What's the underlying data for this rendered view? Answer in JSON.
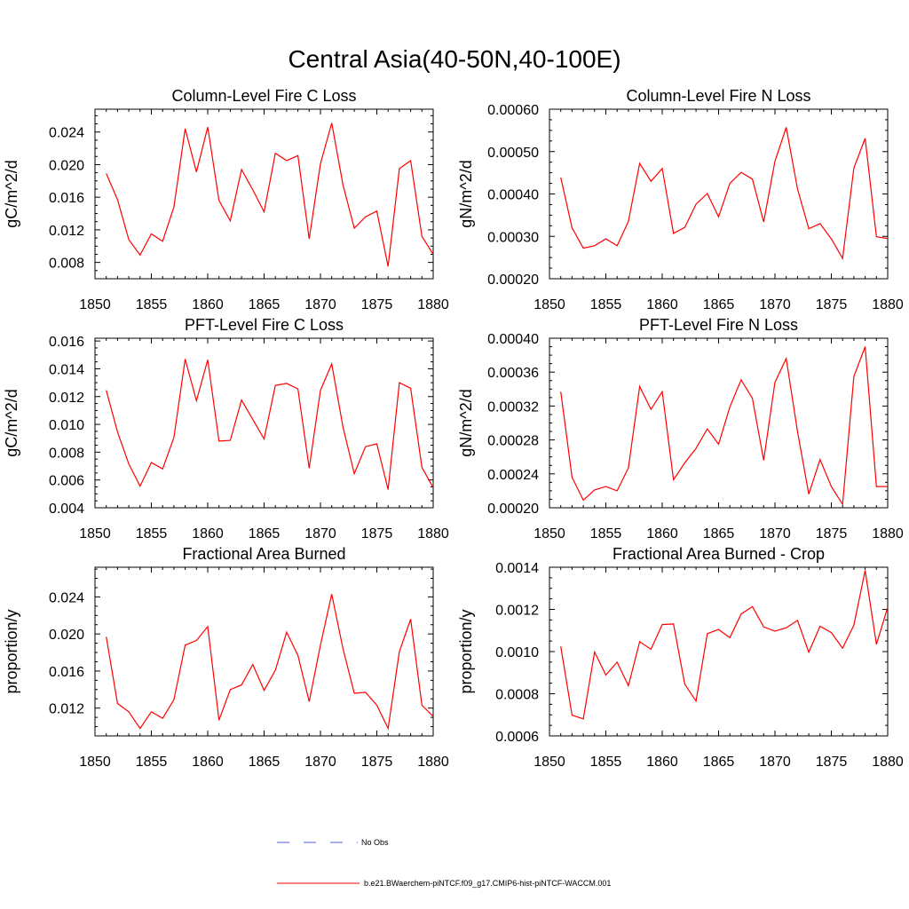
{
  "title": "Central Asia(40-50N,40-100E)",
  "colors": {
    "model_line": "#ff0000",
    "obs_line": "#4a5fd8",
    "axis": "#000000"
  },
  "legend": {
    "obs_label": "No Obs",
    "model_label": "b.e21.BWaerchem-piNTCF.f09_g17.CMIP6-hist-piNTCF-WACCM.001",
    "placement": "bottom-center"
  },
  "chart_data": [
    {
      "type": "line",
      "title": "Column-Level Fire C Loss",
      "ylabel": "gC/m^2/d",
      "xlim": [
        1850,
        1880
      ],
      "ylim": [
        0.006,
        0.0268
      ],
      "xticks": [
        "1850",
        "1855",
        "1860",
        "1865",
        "1870",
        "1875",
        "1880"
      ],
      "yticks": [
        "0.008",
        "0.012",
        "0.016",
        "0.020",
        "0.024"
      ],
      "x": [
        1851,
        1852,
        1853,
        1854,
        1855,
        1856,
        1857,
        1858,
        1859,
        1860,
        1861,
        1862,
        1863,
        1864,
        1865,
        1866,
        1867,
        1868,
        1869,
        1870,
        1871,
        1872,
        1873,
        1874,
        1875,
        1876,
        1877,
        1878,
        1879,
        1880
      ],
      "series": [
        {
          "values": [
            0.0189,
            0.0157,
            0.0108,
            0.0089,
            0.0115,
            0.0106,
            0.0148,
            0.0244,
            0.0191,
            0.0246,
            0.0156,
            0.0131,
            0.0194,
            0.0169,
            0.0142,
            0.0214,
            0.0205,
            0.0211,
            0.0109,
            0.0201,
            0.0251,
            0.0175,
            0.0122,
            0.0136,
            0.0143,
            0.0075,
            0.0195,
            0.0205,
            0.0112,
            0.009
          ]
        }
      ]
    },
    {
      "type": "line",
      "title": "Column-Level Fire N Loss",
      "ylabel": "gN/m^2/d",
      "xlim": [
        1850,
        1880
      ],
      "ylim": [
        0.0002,
        0.0006
      ],
      "xticks": [
        "1850",
        "1855",
        "1860",
        "1865",
        "1870",
        "1875",
        "1880"
      ],
      "yticks": [
        "0.00020",
        "0.00030",
        "0.00040",
        "0.00050",
        "0.00060"
      ],
      "x": [
        1851,
        1852,
        1853,
        1854,
        1855,
        1856,
        1857,
        1858,
        1859,
        1860,
        1861,
        1862,
        1863,
        1864,
        1865,
        1866,
        1867,
        1868,
        1869,
        1870,
        1871,
        1872,
        1873,
        1874,
        1875,
        1876,
        1877,
        1878,
        1879,
        1880
      ],
      "series": [
        {
          "values": [
            0.000439,
            0.00032,
            0.000272,
            0.000278,
            0.000294,
            0.000278,
            0.000335,
            0.000472,
            0.00043,
            0.00046,
            0.000307,
            0.000321,
            0.000376,
            0.000401,
            0.000346,
            0.000425,
            0.000451,
            0.000435,
            0.000334,
            0.000477,
            0.000557,
            0.000412,
            0.000318,
            0.00033,
            0.000294,
            0.000248,
            0.000461,
            0.000531,
            0.000299,
            0.000295
          ]
        }
      ]
    },
    {
      "type": "line",
      "title": "PFT-Level Fire C Loss",
      "ylabel": "gC/m^2/d",
      "xlim": [
        1850,
        1880
      ],
      "ylim": [
        0.004,
        0.0162
      ],
      "xticks": [
        "1850",
        "1855",
        "1860",
        "1865",
        "1870",
        "1875",
        "1880"
      ],
      "yticks": [
        "0.004",
        "0.006",
        "0.008",
        "0.010",
        "0.012",
        "0.014",
        "0.016"
      ],
      "x": [
        1851,
        1852,
        1853,
        1854,
        1855,
        1856,
        1857,
        1858,
        1859,
        1860,
        1861,
        1862,
        1863,
        1864,
        1865,
        1866,
        1867,
        1868,
        1869,
        1870,
        1871,
        1872,
        1873,
        1874,
        1875,
        1876,
        1877,
        1878,
        1879,
        1880
      ],
      "series": [
        {
          "values": [
            0.01245,
            0.00945,
            0.00715,
            0.00555,
            0.00725,
            0.0068,
            0.00905,
            0.0147,
            0.0117,
            0.01465,
            0.0088,
            0.00885,
            0.01175,
            0.01035,
            0.00895,
            0.0128,
            0.01295,
            0.01255,
            0.00685,
            0.01245,
            0.01435,
            0.0098,
            0.00645,
            0.0084,
            0.0086,
            0.0053,
            0.013,
            0.0126,
            0.0069,
            0.00545
          ]
        }
      ]
    },
    {
      "type": "line",
      "title": "PFT-Level Fire N Loss",
      "ylabel": "gN/m^2/d",
      "xlim": [
        1850,
        1880
      ],
      "ylim": [
        0.0002,
        0.0004
      ],
      "xticks": [
        "1850",
        "1855",
        "1860",
        "1865",
        "1870",
        "1875",
        "1880"
      ],
      "yticks": [
        "0.00020",
        "0.00024",
        "0.00028",
        "0.00032",
        "0.00036",
        "0.00040"
      ],
      "x": [
        1851,
        1852,
        1853,
        1854,
        1855,
        1856,
        1857,
        1858,
        1859,
        1860,
        1861,
        1862,
        1863,
        1864,
        1865,
        1866,
        1867,
        1868,
        1869,
        1870,
        1871,
        1872,
        1873,
        1874,
        1875,
        1876,
        1877,
        1878,
        1879,
        1880
      ],
      "series": [
        {
          "values": [
            0.000337,
            0.000236,
            0.000209,
            0.000221,
            0.000225,
            0.00022,
            0.000247,
            0.000343,
            0.000316,
            0.000337,
            0.000233,
            0.000253,
            0.00027,
            0.000293,
            0.000275,
            0.000319,
            0.000351,
            0.000329,
            0.000256,
            0.000348,
            0.000376,
            0.00029,
            0.000216,
            0.000257,
            0.000225,
            0.000204,
            0.000355,
            0.00039,
            0.000225,
            0.000225
          ]
        }
      ]
    },
    {
      "type": "line",
      "title": "Fractional Area Burned",
      "ylabel": "proportion/y",
      "xlim": [
        1850,
        1880
      ],
      "ylim": [
        0.009,
        0.0272
      ],
      "xticks": [
        "1850",
        "1855",
        "1860",
        "1865",
        "1870",
        "1875",
        "1880"
      ],
      "yticks": [
        "0.012",
        "0.016",
        "0.020",
        "0.024"
      ],
      "x": [
        1851,
        1852,
        1853,
        1854,
        1855,
        1856,
        1857,
        1858,
        1859,
        1860,
        1861,
        1862,
        1863,
        1864,
        1865,
        1866,
        1867,
        1868,
        1869,
        1870,
        1871,
        1872,
        1873,
        1874,
        1875,
        1876,
        1877,
        1878,
        1879,
        1880
      ],
      "series": [
        {
          "values": [
            0.0197,
            0.0125,
            0.0116,
            0.0098,
            0.0116,
            0.0109,
            0.0129,
            0.0188,
            0.0193,
            0.0208,
            0.0107,
            0.014,
            0.0145,
            0.0167,
            0.0139,
            0.0161,
            0.0202,
            0.0177,
            0.0127,
            0.0188,
            0.0243,
            0.0184,
            0.0136,
            0.0137,
            0.0123,
            0.0098,
            0.0181,
            0.0216,
            0.0123,
            0.0111
          ]
        }
      ]
    },
    {
      "type": "line",
      "title": "Fractional Area Burned - Crop",
      "ylabel": "proportion/y",
      "xlim": [
        1850,
        1880
      ],
      "ylim": [
        0.0006,
        0.0014
      ],
      "xticks": [
        "1850",
        "1855",
        "1860",
        "1865",
        "1870",
        "1875",
        "1880"
      ],
      "yticks": [
        "0.0006",
        "0.0008",
        "0.0010",
        "0.0012",
        "0.0014"
      ],
      "x": [
        1851,
        1852,
        1853,
        1854,
        1855,
        1856,
        1857,
        1858,
        1859,
        1860,
        1861,
        1862,
        1863,
        1864,
        1865,
        1866,
        1867,
        1868,
        1869,
        1870,
        1871,
        1872,
        1873,
        1874,
        1875,
        1876,
        1877,
        1878,
        1879,
        1880
      ],
      "series": [
        {
          "values": [
            0.001025,
            0.000698,
            0.000681,
            0.000998,
            0.000889,
            0.00095,
            0.000838,
            0.001047,
            0.001011,
            0.001128,
            0.001131,
            0.000845,
            0.000765,
            0.001085,
            0.001105,
            0.001066,
            0.001178,
            0.001213,
            0.001117,
            0.001097,
            0.001113,
            0.001148,
            0.000997,
            0.00112,
            0.00109,
            0.001016,
            0.001125,
            0.001385,
            0.001034,
            0.00121
          ]
        }
      ]
    }
  ]
}
